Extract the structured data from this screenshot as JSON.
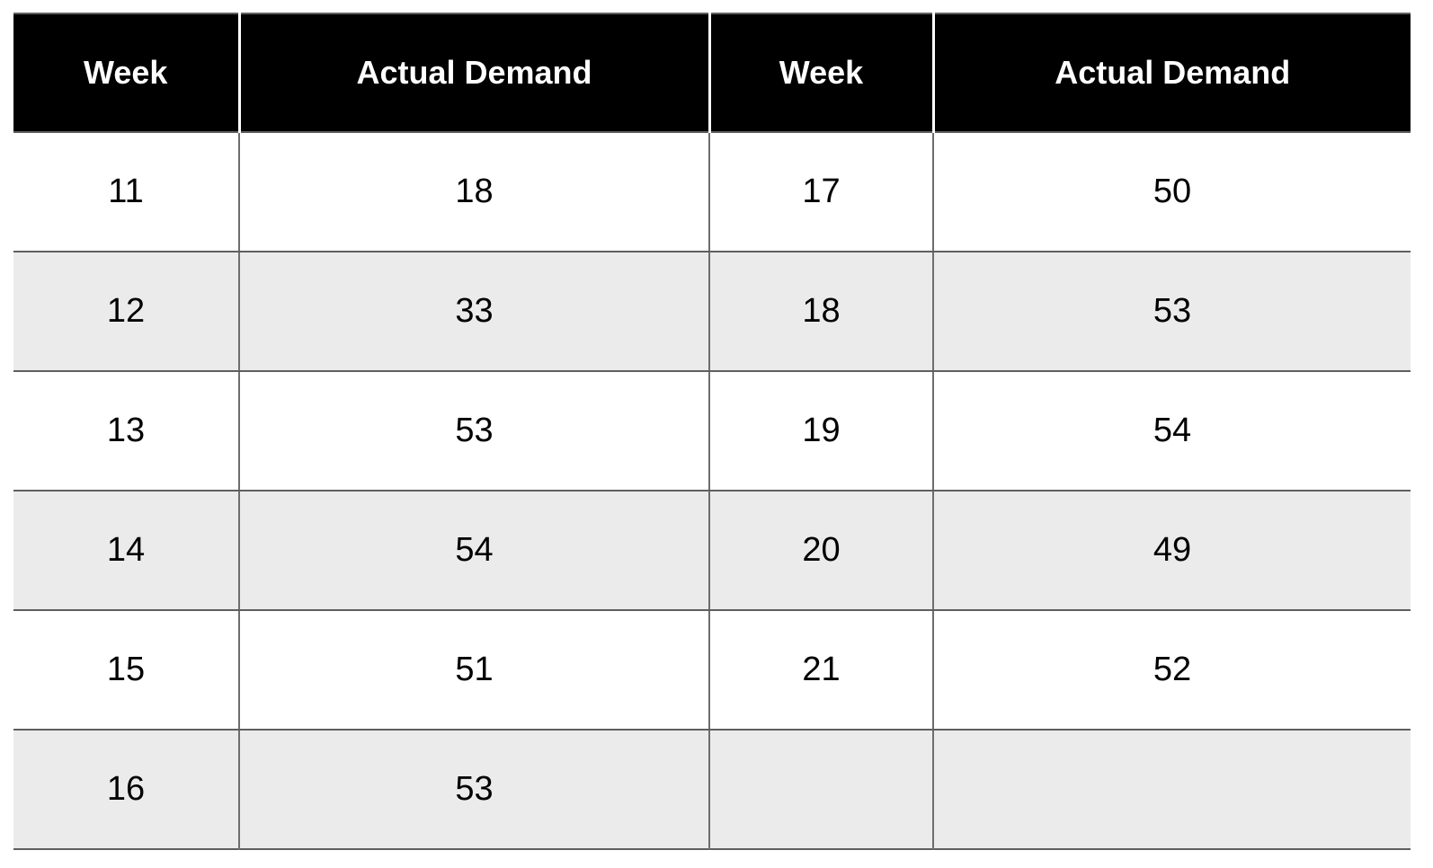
{
  "table": {
    "columns": [
      "Week",
      "Actual Demand",
      "Week",
      "Actual Demand"
    ],
    "rows": [
      [
        "11",
        "18",
        "17",
        "50"
      ],
      [
        "12",
        "33",
        "18",
        "53"
      ],
      [
        "13",
        "53",
        "19",
        "54"
      ],
      [
        "14",
        "54",
        "20",
        "49"
      ],
      [
        "15",
        "51",
        "21",
        "52"
      ],
      [
        "16",
        "53",
        "",
        ""
      ]
    ]
  },
  "chart_data": {
    "type": "table",
    "title": "",
    "columns": [
      "Week",
      "Actual Demand",
      "Week",
      "Actual Demand"
    ],
    "rows": [
      [
        "11",
        "18",
        "17",
        "50"
      ],
      [
        "12",
        "33",
        "18",
        "53"
      ],
      [
        "13",
        "53",
        "19",
        "54"
      ],
      [
        "14",
        "54",
        "20",
        "49"
      ],
      [
        "15",
        "51",
        "21",
        "52"
      ],
      [
        "16",
        "53",
        "",
        ""
      ]
    ],
    "series": [
      {
        "name": "Actual Demand",
        "x": [
          11,
          12,
          13,
          14,
          15,
          16,
          17,
          18,
          19,
          20,
          21
        ],
        "values": [
          18,
          33,
          53,
          54,
          51,
          53,
          50,
          53,
          54,
          49,
          52
        ]
      }
    ]
  },
  "colors": {
    "header_bg": "#000000",
    "header_text": "#ffffff",
    "zebra_row": "#ebebeb",
    "row_bg": "#ffffff",
    "border_horizontal": "#5f5f5f",
    "border_vertical": "#6e6e6e",
    "header_separator": "#ffffff"
  }
}
